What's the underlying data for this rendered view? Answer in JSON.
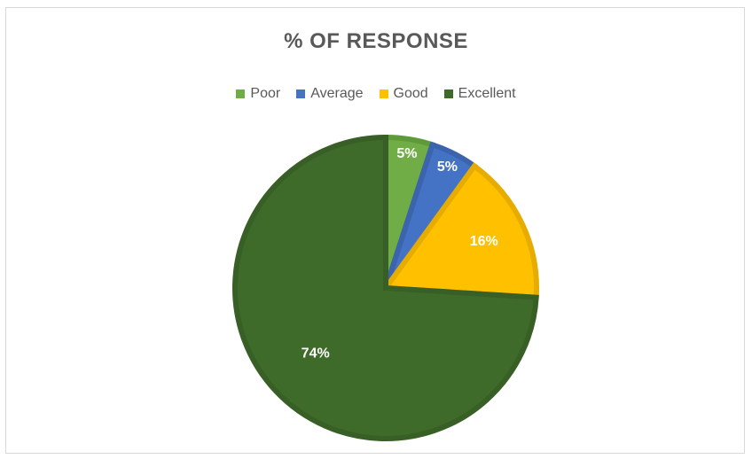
{
  "chart_data": {
    "type": "pie",
    "title": "% OF RESPONSE",
    "legend_position": "top",
    "categories": [
      "Poor",
      "Average",
      "Good",
      "Excellent"
    ],
    "values": [
      5,
      5,
      16,
      74
    ],
    "labels": [
      "5%",
      "5%",
      "16%",
      "74%"
    ],
    "colors": [
      "#70ad47",
      "#4472c4",
      "#ffc000",
      "#3f6b2a"
    ],
    "border_colors": [
      "#5e9a38",
      "#3b64ad",
      "#e6ad00",
      "#385f25"
    ]
  }
}
